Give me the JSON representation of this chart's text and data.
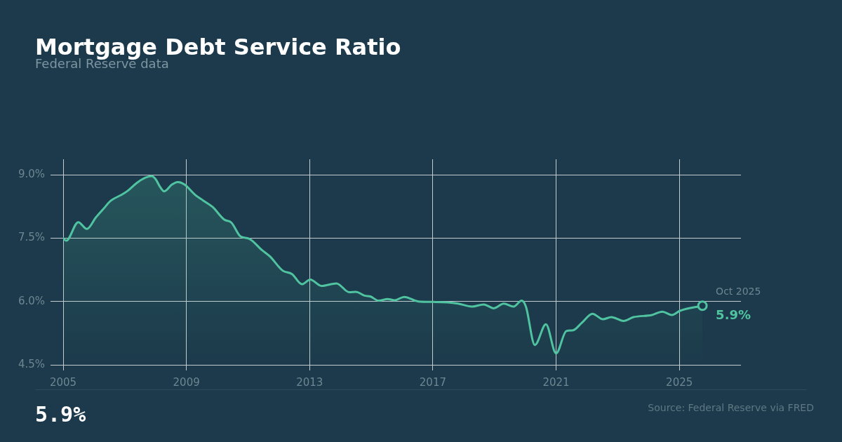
{
  "chart_data": {
    "type": "area",
    "title": "Mortgage Debt Service Ratio",
    "subtitle": "Federal Reserve data",
    "series": [
      {
        "color": "#50c4a0",
        "x": [
          2005.0,
          2005.1,
          2005.49,
          2005.77,
          2006.06,
          2006.29,
          2006.55,
          2006.9,
          2007.09,
          2007.39,
          2007.66,
          2007.87,
          2008.0,
          2008.15,
          2008.28,
          2008.53,
          2008.72,
          2008.94,
          2009.28,
          2009.55,
          2009.85,
          2010.23,
          2010.46,
          2010.76,
          2011.03,
          2011.45,
          2011.71,
          2012.13,
          2012.43,
          2012.75,
          2013.02,
          2013.38,
          2013.87,
          2014.29,
          2014.5,
          2014.78,
          2014.97,
          2015.24,
          2015.53,
          2015.76,
          2016.07,
          2016.53,
          2017.01,
          2017.48,
          2017.82,
          2018.27,
          2018.65,
          2018.98,
          2019.3,
          2019.62,
          2019.88,
          2020.02,
          2020.31,
          2020.67,
          2021.0,
          2021.33,
          2021.55,
          2021.84,
          2022.18,
          2022.52,
          2022.79,
          2023.19,
          2023.51,
          2024.11,
          2024.45,
          2024.76,
          2025.02,
          2025.75
        ],
        "values": [
          7.5,
          7.44,
          7.88,
          7.72,
          7.99,
          8.18,
          8.39,
          8.53,
          8.62,
          8.81,
          8.93,
          8.97,
          8.9,
          8.71,
          8.61,
          8.77,
          8.83,
          8.77,
          8.53,
          8.39,
          8.24,
          7.94,
          7.87,
          7.54,
          7.49,
          7.22,
          7.07,
          6.73,
          6.65,
          6.41,
          6.52,
          6.37,
          6.43,
          6.22,
          6.23,
          6.14,
          6.12,
          6.02,
          6.06,
          6.03,
          6.11,
          6.0,
          5.99,
          5.98,
          5.95,
          5.88,
          5.93,
          5.84,
          5.95,
          5.88,
          6.02,
          5.88,
          4.97,
          5.46,
          4.77,
          5.3,
          5.32,
          5.5,
          5.71,
          5.58,
          5.63,
          5.54,
          5.63,
          5.68,
          5.76,
          5.68,
          5.78,
          5.9
        ]
      },
      {
        "type": "scatter",
        "color": "#50c4a0",
        "marker": "circle",
        "x": [
          2025.75
        ],
        "values": [
          5.9
        ]
      }
    ],
    "xlim": [
      2005,
      2027
    ],
    "xticks": [
      2005,
      2009,
      2013,
      2017,
      2021,
      2025
    ],
    "ylim": [
      4.5,
      9.37
    ],
    "yticks": [
      {
        "value": 4.5,
        "label": "4.5%"
      },
      {
        "value": 6,
        "label": "6.0%"
      },
      {
        "value": 7.5,
        "label": "7.5%"
      },
      {
        "value": 9,
        "label": "9.0%"
      }
    ],
    "grid": true,
    "marker": "none",
    "annotations": [
      {
        "text": "Oct 2025",
        "x": 2025.75,
        "y": 5.9
      },
      {
        "text": "5.9%",
        "x": 2025.75,
        "y": 5.9
      },
      "5.9%",
      "Source: Federal Reserve via FRED"
    ]
  }
}
